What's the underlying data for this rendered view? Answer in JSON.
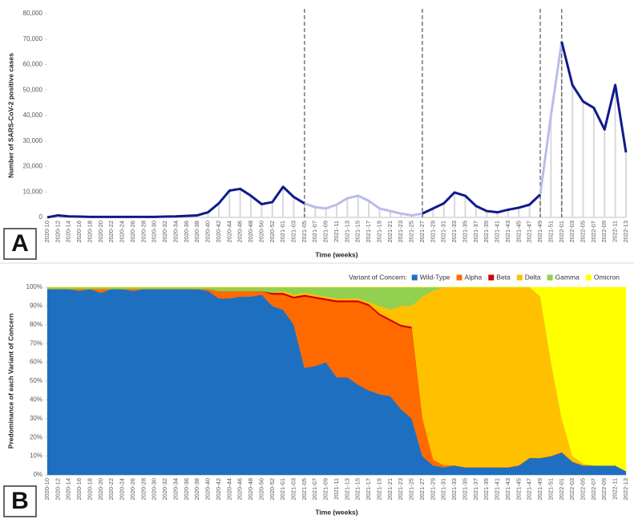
{
  "chart_data": [
    {
      "type": "line",
      "panel": "A",
      "y_label": "Number of SARS-CoV-2 positive cases",
      "x_label": "Time (weeks)",
      "categories": [
        "2020-10",
        "2020-12",
        "2020-14",
        "2020-16",
        "2020-18",
        "2020-20",
        "2020-22",
        "2020-24",
        "2020-26",
        "2020-28",
        "2020-30",
        "2020-32",
        "2020-34",
        "2020-36",
        "2020-38",
        "2020-40",
        "2020-42",
        "2020-44",
        "2020-46",
        "2020-48",
        "2020-50",
        "2020-52",
        "2021-01",
        "2021-03",
        "2021-05",
        "2021-07",
        "2021-09",
        "2021-11",
        "2021-13",
        "2021-15",
        "2021-17",
        "2021-19",
        "2021-21",
        "2021-23",
        "2021-25",
        "2021-27",
        "2021-29",
        "2021-31",
        "2021-33",
        "2021-35",
        "2021-37",
        "2021-39",
        "2021-41",
        "2021-43",
        "2021-45",
        "2021-47",
        "2021-49",
        "2021-51",
        "2022-01",
        "2022-03",
        "2022-05",
        "2022-07",
        "2022-09",
        "2022-11",
        "2022-13"
      ],
      "values": [
        0,
        800,
        400,
        300,
        200,
        200,
        200,
        200,
        200,
        200,
        200,
        300,
        400,
        600,
        800,
        2000,
        5500,
        10500,
        11200,
        8500,
        5200,
        6000,
        12000,
        8000,
        5500,
        4000,
        3500,
        5000,
        7500,
        8500,
        6500,
        3500,
        2500,
        1500,
        800,
        1500,
        3500,
        5500,
        9800,
        8500,
        4500,
        2500,
        2000,
        3000,
        3800,
        5000,
        9000,
        40000,
        69000,
        52000,
        45500,
        43000,
        34500,
        52000,
        25500
      ],
      "color": "#0f1a8c",
      "faded_color": "#b9bde8",
      "bar_color": "#d9d9d9",
      "faded_ranges": [
        [
          "2021-05",
          "2021-27"
        ],
        [
          "2021-49",
          "2022-01"
        ]
      ],
      "ylim": [
        0,
        80000
      ],
      "yticks": [
        0,
        {
          "value": 10000,
          "label": "10,000"
        },
        {
          "value": 20000,
          "label": "20,000"
        },
        {
          "value": 30000,
          "label": "30,000"
        },
        {
          "value": 40000,
          "label": "40,000"
        },
        {
          "value": 50000,
          "label": "50,000"
        },
        {
          "value": 60000,
          "label": "60,000"
        },
        {
          "value": 70000,
          "label": "70,000"
        },
        {
          "value": 80000,
          "label": "80,000"
        }
      ],
      "grid": false
    },
    {
      "type": "stacked_area",
      "panel": "B",
      "y_label": "Predominance of each Variant of Concern",
      "x_label": "Time (weeks)",
      "legend_title": "Variant of Concern:",
      "legend": "top-right",
      "categories": [
        "2020-10",
        "2020-12",
        "2020-14",
        "2020-16",
        "2020-18",
        "2020-20",
        "2020-22",
        "2020-24",
        "2020-26",
        "2020-28",
        "2020-30",
        "2020-32",
        "2020-34",
        "2020-36",
        "2020-38",
        "2020-40",
        "2020-42",
        "2020-44",
        "2020-46",
        "2020-48",
        "2020-50",
        "2020-52",
        "2021-01",
        "2021-03",
        "2021-05",
        "2021-07",
        "2021-09",
        "2021-11",
        "2021-13",
        "2021-15",
        "2021-17",
        "2021-19",
        "2021-21",
        "2021-23",
        "2021-25",
        "2021-27",
        "2021-29",
        "2021-31",
        "2021-33",
        "2021-35",
        "2021-37",
        "2021-39",
        "2021-41",
        "2021-43",
        "2021-45",
        "2021-47",
        "2021-49",
        "2021-51",
        "2022-01",
        "2022-03",
        "2022-05",
        "2022-07",
        "2022-09",
        "2022-11",
        "2022-13"
      ],
      "series": [
        {
          "name": "Wild-Type",
          "color": "#1f6fc0",
          "values": [
            99,
            99,
            99,
            98,
            99,
            97,
            99,
            99,
            98,
            99,
            99,
            99,
            99,
            99,
            99,
            98,
            94,
            94,
            95,
            95,
            96,
            90,
            88,
            80,
            57,
            58,
            60,
            52,
            52,
            48,
            45,
            43,
            42,
            35,
            30,
            10,
            5,
            4,
            5,
            4,
            4,
            4,
            4,
            4,
            5,
            9,
            9,
            10,
            12,
            7,
            5,
            5,
            5,
            5,
            2
          ]
        },
        {
          "name": "Alpha",
          "color": "#ff6a00",
          "values": [
            0,
            0,
            0,
            1,
            0,
            2,
            0,
            0,
            1,
            0,
            0,
            0,
            0,
            0,
            0,
            1,
            4,
            4,
            3,
            3,
            2,
            6,
            8,
            14,
            38,
            36,
            33,
            40,
            40,
            44,
            45,
            42,
            40,
            44,
            48,
            20,
            3,
            1,
            0,
            0,
            0,
            0,
            0,
            0,
            0,
            0,
            0,
            0,
            0,
            0,
            0,
            0,
            0,
            0,
            0
          ]
        },
        {
          "name": "Beta",
          "color": "#d00000",
          "values": [
            0,
            0,
            0,
            0,
            0,
            0,
            0,
            0,
            0,
            0,
            0,
            0,
            0,
            0,
            0,
            0,
            0,
            0,
            0,
            0,
            0,
            1,
            1,
            1,
            1,
            1,
            1,
            1,
            1,
            1,
            1,
            1,
            1,
            1,
            1,
            0,
            0,
            0,
            0,
            0,
            0,
            0,
            0,
            0,
            0,
            0,
            0,
            0,
            0,
            0,
            0,
            0,
            0,
            0,
            0
          ]
        },
        {
          "name": "Delta",
          "color": "#ffc000",
          "values": [
            0,
            0,
            0,
            0,
            0,
            0,
            0,
            0,
            0,
            0,
            0,
            0,
            0,
            0,
            0,
            0,
            0,
            0,
            0,
            0,
            0,
            0,
            1,
            1,
            1,
            1,
            1,
            1,
            1,
            1,
            1,
            4,
            5,
            10,
            11,
            65,
            90,
            95,
            95,
            96,
            96,
            96,
            96,
            96,
            95,
            91,
            86,
            50,
            18,
            3,
            1,
            0,
            0,
            0,
            0
          ]
        },
        {
          "name": "Gamma",
          "color": "#92d050",
          "values": [
            1,
            1,
            1,
            1,
            1,
            1,
            1,
            1,
            1,
            1,
            1,
            1,
            1,
            1,
            1,
            1,
            2,
            2,
            2,
            2,
            2,
            3,
            2,
            4,
            3,
            4,
            5,
            6,
            6,
            6,
            8,
            10,
            12,
            10,
            10,
            5,
            2,
            0,
            0,
            0,
            0,
            0,
            0,
            0,
            0,
            0,
            0,
            0,
            0,
            0,
            0,
            0,
            0,
            0,
            0
          ]
        },
        {
          "name": "Omicron",
          "color": "#ffff00",
          "values": [
            0,
            0,
            0,
            0,
            0,
            0,
            0,
            0,
            0,
            0,
            0,
            0,
            0,
            0,
            0,
            0,
            0,
            0,
            0,
            0,
            0,
            0,
            0,
            0,
            0,
            0,
            0,
            0,
            0,
            0,
            0,
            0,
            0,
            0,
            0,
            0,
            0,
            0,
            0,
            0,
            0,
            0,
            0,
            0,
            0,
            0,
            5,
            40,
            70,
            90,
            94,
            95,
            95,
            95,
            98
          ]
        }
      ],
      "ylim": [
        0,
        100
      ],
      "yticks": [
        {
          "value": 0,
          "label": "0%"
        },
        {
          "value": 10,
          "label": "10%"
        },
        {
          "value": 20,
          "label": "20%"
        },
        {
          "value": 30,
          "label": "30%"
        },
        {
          "value": 40,
          "label": "40%"
        },
        {
          "value": 50,
          "label": "50%"
        },
        {
          "value": 60,
          "label": "60%"
        },
        {
          "value": 70,
          "label": "70%"
        },
        {
          "value": 80,
          "label": "80%"
        },
        {
          "value": 90,
          "label": "90%"
        },
        {
          "value": 100,
          "label": "100%"
        }
      ],
      "grid": false
    }
  ]
}
